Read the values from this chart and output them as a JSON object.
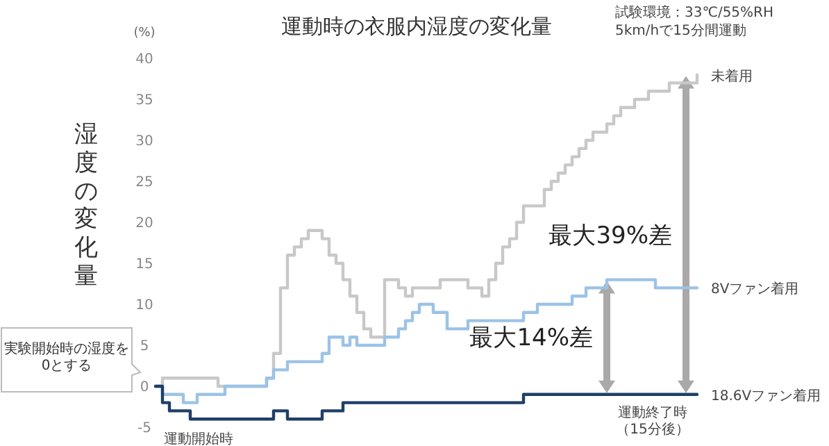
{
  "chart_data": {
    "type": "step",
    "title": "運動時の衣服内湿度の変化量",
    "subtitle": "試験環境：33℃/55%RH",
    "ylabel": "湿度の変化量",
    "annotations": [
      "(%)",
      "実験開始時の湿度を0とする",
      "運動開始時",
      "運動終了時（15分後）",
      "最大39%差",
      "最大14%差",
      "5km/hで15分間運動"
    ],
    "categories": [
      null,
      null,
      null,
      null,
      null,
      null,
      null,
      null,
      null,
      null,
      null,
      null,
      null,
      null,
      null,
      null,
      null,
      null,
      null,
      null,
      null,
      null,
      null,
      null,
      null,
      null,
      null,
      null,
      null,
      null,
      null,
      null,
      null,
      null,
      null,
      null,
      null,
      null,
      null,
      null,
      null,
      null,
      null,
      null,
      null,
      null,
      null,
      null,
      null,
      null,
      null,
      null,
      null,
      null,
      null,
      null,
      null,
      null,
      null,
      null,
      null,
      null,
      null,
      null,
      null,
      null,
      null,
      null,
      null,
      null,
      null,
      null,
      null,
      null,
      null,
      null,
      null,
      null,
      null
    ],
    "series": [
      {
        "name": "未着用",
        "color": "#c8c8c8",
        "values": [
          0,
          1,
          1,
          1,
          1,
          1,
          1,
          1,
          1,
          0,
          0,
          0,
          0,
          0,
          0,
          0,
          1,
          4,
          12,
          16,
          17,
          18,
          19,
          19,
          18,
          16,
          15,
          13,
          11,
          9,
          7,
          6,
          6,
          13,
          13,
          12,
          11,
          12,
          12,
          12,
          12,
          13,
          13,
          13,
          13,
          12,
          12,
          11,
          13,
          15,
          17,
          18,
          20,
          22,
          22,
          22,
          24,
          25,
          26,
          27,
          28,
          29,
          30,
          31,
          31,
          32,
          33,
          34,
          34,
          35,
          35,
          36,
          36,
          36,
          37,
          37,
          37,
          37,
          38
        ]
      },
      {
        "name": "8Vファン着用",
        "color": "#9cc3e6",
        "values": [
          0,
          -1,
          -1,
          -1,
          -2,
          -2,
          -1,
          -1,
          -1,
          -1,
          0,
          0,
          0,
          0,
          0,
          0,
          1,
          2,
          2,
          3,
          3,
          3,
          3,
          3,
          4,
          6,
          6,
          5,
          6,
          5,
          5,
          5,
          5,
          6,
          6,
          7,
          8,
          9,
          10,
          10,
          9,
          9,
          7,
          7,
          7,
          8,
          8,
          8,
          8,
          8,
          8,
          8,
          8,
          9,
          9,
          10,
          10,
          10,
          10,
          10,
          11,
          11,
          12,
          12,
          12,
          13,
          13,
          13,
          13,
          13,
          13,
          13,
          12,
          12,
          12,
          12,
          12,
          12,
          12
        ]
      },
      {
        "name": "18.6Vファン着用",
        "color": "#1f3f66",
        "values": [
          0,
          -2,
          -3,
          -3,
          -3,
          -4,
          -4,
          -4,
          -4,
          -4,
          -4,
          -4,
          -4,
          -4,
          -4,
          -4,
          -4,
          -3,
          -3,
          -4,
          -4,
          -4,
          -4,
          -4,
          -3,
          -3,
          -3,
          -2,
          -2,
          -2,
          -2,
          -2,
          -2,
          -2,
          -2,
          -2,
          -2,
          -2,
          -2,
          -2,
          -2,
          -2,
          -2,
          -2,
          -2,
          -2,
          -2,
          -2,
          -2,
          -2,
          -2,
          -2,
          -2,
          -1,
          -1,
          -1,
          -1,
          -1,
          -1,
          -1,
          -1,
          -1,
          -1,
          -1,
          -1,
          -1,
          -1,
          -1,
          -1,
          -1,
          -1,
          -1,
          -1,
          -1,
          -1,
          -1,
          -1,
          -1,
          -1
        ]
      }
    ],
    "ylim": [
      -5,
      40
    ],
    "yticks": [
      -5,
      0,
      5,
      10,
      15,
      20,
      25,
      30,
      35,
      40
    ],
    "grid": false,
    "legend": false,
    "marker": "none",
    "line_style": "solid"
  }
}
